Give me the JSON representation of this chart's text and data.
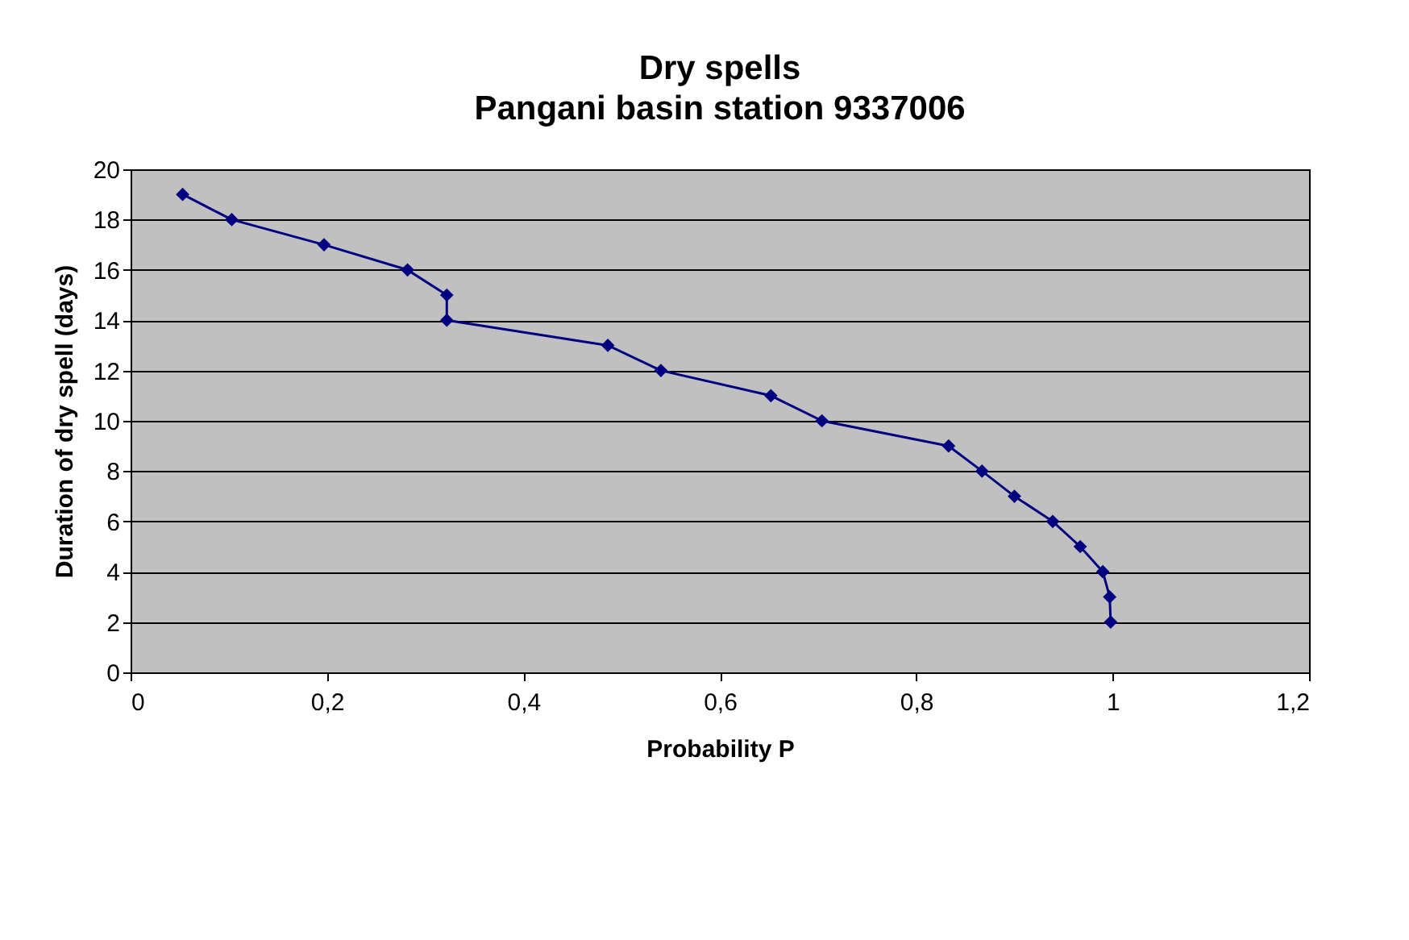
{
  "chart_data": {
    "type": "line",
    "title": "Dry spells",
    "subtitle": "Pangani basin station 9337006",
    "xlabel": "Probability P",
    "ylabel": "Duration of dry spell (days)",
    "x": [
      0.053,
      0.103,
      0.197,
      0.282,
      0.322,
      0.322,
      0.486,
      0.54,
      0.652,
      0.704,
      0.833,
      0.867,
      0.9,
      0.939,
      0.967,
      0.99,
      0.997,
      0.998
    ],
    "series": [
      {
        "color": "#000080",
        "values": [
          19,
          18,
          17,
          16,
          15,
          14,
          13,
          12,
          11,
          10,
          9,
          8,
          7,
          6,
          5,
          4,
          3,
          2
        ]
      }
    ],
    "xlim": [
      0,
      1.2
    ],
    "xticks": [
      0,
      {
        "value": 0.2,
        "label": "0,2"
      },
      {
        "value": 0.4,
        "label": "0,4"
      },
      {
        "value": 0.6,
        "label": "0,6"
      },
      {
        "value": 0.8,
        "label": "0,8"
      },
      1,
      {
        "value": 1.2,
        "label": "1,2"
      }
    ],
    "ylim": [
      0,
      20
    ],
    "yticks": [
      0,
      2,
      4,
      6,
      8,
      10,
      12,
      14,
      16,
      18,
      20
    ],
    "grid": "y",
    "marker": "diamond",
    "line_style": "solid"
  }
}
